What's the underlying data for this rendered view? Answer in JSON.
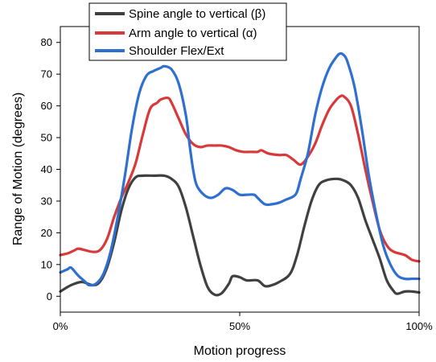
{
  "chart_data": {
    "type": "line",
    "title": "",
    "xlabel": "Motion progress",
    "ylabel": "Range of Motion (degrees)",
    "xlim": [
      0,
      100
    ],
    "ylim": [
      -5,
      85
    ],
    "x_ticks": [
      0,
      50,
      100
    ],
    "x_tick_labels": [
      "0%",
      "50%",
      "100%"
    ],
    "y_ticks": [
      0,
      10,
      20,
      30,
      40,
      50,
      60,
      70,
      80
    ],
    "y_tick_labels": [
      "0",
      "10",
      "20",
      "30",
      "40",
      "50",
      "60",
      "70",
      "80"
    ],
    "grid": false,
    "legend_position": "top-center",
    "series": [
      {
        "name": "Spine angle to vertical (β)",
        "color": "#404040",
        "points": [
          [
            0,
            1.5
          ],
          [
            3,
            3.5
          ],
          [
            6,
            4.5
          ],
          [
            9,
            3.5
          ],
          [
            11,
            4.5
          ],
          [
            13,
            9
          ],
          [
            15,
            17
          ],
          [
            17,
            27
          ],
          [
            19,
            34
          ],
          [
            21,
            37.5
          ],
          [
            23,
            38
          ],
          [
            26,
            38
          ],
          [
            29,
            38
          ],
          [
            31,
            37
          ],
          [
            33,
            34.5
          ],
          [
            35,
            28
          ],
          [
            37,
            19
          ],
          [
            39,
            10
          ],
          [
            41,
            3
          ],
          [
            43,
            0.5
          ],
          [
            45,
            1
          ],
          [
            47,
            4
          ],
          [
            48,
            6.3
          ],
          [
            50,
            6
          ],
          [
            52,
            5
          ],
          [
            55,
            5
          ],
          [
            57,
            3.2
          ],
          [
            59,
            3.5
          ],
          [
            61,
            4.5
          ],
          [
            64,
            7
          ],
          [
            66,
            13
          ],
          [
            68,
            22
          ],
          [
            70,
            30
          ],
          [
            72,
            35
          ],
          [
            74,
            36.5
          ],
          [
            77,
            37
          ],
          [
            79,
            36.5
          ],
          [
            81,
            35
          ],
          [
            83,
            31
          ],
          [
            85,
            24
          ],
          [
            87,
            18
          ],
          [
            89,
            12
          ],
          [
            91,
            5
          ],
          [
            93,
            1.5
          ],
          [
            94,
            0.8
          ],
          [
            96,
            1.5
          ],
          [
            98,
            1.5
          ],
          [
            100,
            1.2
          ]
        ]
      },
      {
        "name": "Arm angle to vertical (α)",
        "color": "#d9393a",
        "points": [
          [
            0,
            13
          ],
          [
            2,
            13.5
          ],
          [
            4,
            14.5
          ],
          [
            5,
            15
          ],
          [
            7,
            14.5
          ],
          [
            9,
            14
          ],
          [
            11,
            14.5
          ],
          [
            13,
            18
          ],
          [
            15,
            25
          ],
          [
            17,
            31
          ],
          [
            19,
            36
          ],
          [
            21,
            42
          ],
          [
            23,
            51
          ],
          [
            25,
            59
          ],
          [
            27,
            61
          ],
          [
            28,
            62
          ],
          [
            30,
            62.5
          ],
          [
            31,
            61
          ],
          [
            33,
            56
          ],
          [
            35,
            51
          ],
          [
            37,
            48
          ],
          [
            39,
            47
          ],
          [
            41,
            47.5
          ],
          [
            43,
            47.5
          ],
          [
            45,
            47.5
          ],
          [
            47,
            47
          ],
          [
            49,
            46
          ],
          [
            51,
            45.5
          ],
          [
            53,
            45.5
          ],
          [
            55,
            45.5
          ],
          [
            56,
            46
          ],
          [
            58,
            45
          ],
          [
            61,
            44.5
          ],
          [
            63,
            44.5
          ],
          [
            65,
            43
          ],
          [
            67,
            41.5
          ],
          [
            69,
            44
          ],
          [
            71,
            48
          ],
          [
            73,
            54
          ],
          [
            75,
            59
          ],
          [
            77,
            62
          ],
          [
            78,
            63
          ],
          [
            79,
            63
          ],
          [
            81,
            60
          ],
          [
            83,
            51
          ],
          [
            85,
            40
          ],
          [
            87,
            30
          ],
          [
            89,
            21
          ],
          [
            91,
            16
          ],
          [
            93,
            14
          ],
          [
            96,
            13
          ],
          [
            98,
            11.5
          ],
          [
            100,
            11
          ]
        ]
      },
      {
        "name": "Shoulder Flex/Ext",
        "color": "#2e6fd0",
        "points": [
          [
            0,
            7.5
          ],
          [
            2,
            8.5
          ],
          [
            3,
            9
          ],
          [
            5,
            6.5
          ],
          [
            7,
            4.5
          ],
          [
            8,
            3.5
          ],
          [
            10,
            4
          ],
          [
            12,
            7
          ],
          [
            14,
            14
          ],
          [
            16,
            25
          ],
          [
            18,
            38
          ],
          [
            20,
            53
          ],
          [
            22,
            64
          ],
          [
            24,
            69.5
          ],
          [
            26,
            71
          ],
          [
            28,
            72
          ],
          [
            29,
            72.5
          ],
          [
            31,
            71.5
          ],
          [
            33,
            67
          ],
          [
            35,
            57
          ],
          [
            36,
            48
          ],
          [
            37,
            40
          ],
          [
            38,
            35
          ],
          [
            40,
            32
          ],
          [
            42,
            31
          ],
          [
            44,
            32
          ],
          [
            46,
            34
          ],
          [
            48,
            33.5
          ],
          [
            50,
            32
          ],
          [
            52,
            32
          ],
          [
            54,
            32
          ],
          [
            55,
            31
          ],
          [
            57,
            29
          ],
          [
            59,
            29
          ],
          [
            61,
            29.5
          ],
          [
            63,
            30.5
          ],
          [
            65,
            31.5
          ],
          [
            66,
            33
          ],
          [
            67,
            37
          ],
          [
            69,
            45
          ],
          [
            71,
            57
          ],
          [
            73,
            66
          ],
          [
            75,
            72
          ],
          [
            77,
            75.5
          ],
          [
            78,
            76.5
          ],
          [
            79,
            76
          ],
          [
            80,
            74
          ],
          [
            82,
            66
          ],
          [
            84,
            53
          ],
          [
            86,
            38
          ],
          [
            88,
            26
          ],
          [
            90,
            16
          ],
          [
            92,
            10
          ],
          [
            94,
            6.5
          ],
          [
            96,
            5.5
          ],
          [
            98,
            5.5
          ],
          [
            100,
            5.5
          ]
        ]
      }
    ]
  }
}
